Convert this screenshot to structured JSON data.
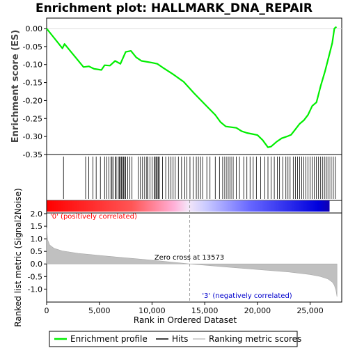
{
  "chart_data": {
    "type": "line",
    "title": "Enrichment plot: HALLMARK_DNA_REPAIR",
    "xlabel": "Rank in Ordered Dataset",
    "es_ylabel": "Enrichment score (ES)",
    "metric_ylabel": "Ranked list metric (Signal2Noise)",
    "xlim": [
      0,
      28000
    ],
    "x_ticks": [
      0,
      5000,
      10000,
      15000,
      20000,
      25000
    ],
    "x_tick_labels": [
      "0",
      "5,000",
      "10,000",
      "15,000",
      "20,000",
      "25,000"
    ],
    "es_ylim": [
      -0.35,
      0.0
    ],
    "es_ticks": [
      0.0,
      -0.05,
      -0.1,
      -0.15,
      -0.2,
      -0.25,
      -0.3,
      -0.35
    ],
    "es_tick_labels": [
      "0.00",
      "-0.05",
      "-0.10",
      "-0.15",
      "-0.20",
      "-0.25",
      "-0.30",
      "-0.35"
    ],
    "metric_ylim": [
      -1.35,
      2.0
    ],
    "metric_ticks": [
      2.0,
      1.5,
      1.0,
      0.5,
      0.0,
      -0.5,
      -1.0
    ],
    "metric_tick_labels": [
      "2.0",
      "1.5",
      "1.0",
      "0.5",
      "0.0",
      "-0.5",
      "-1.0"
    ],
    "series": [
      {
        "name": "Enrichment profile",
        "color": "#00ee00",
        "x": [
          0,
          1500,
          1700,
          3500,
          4000,
          4500,
          5200,
          5500,
          6000,
          6500,
          7000,
          7500,
          8000,
          8500,
          9000,
          10000,
          10500,
          11000,
          12000,
          13000,
          14000,
          15000,
          16000,
          16500,
          17000,
          17500,
          18000,
          18500,
          19000,
          19500,
          20000,
          20500,
          21000,
          21300,
          21800,
          22300,
          22800,
          23200,
          23600,
          24000,
          24400,
          24800,
          25200,
          25600,
          26000,
          26400,
          26800,
          27100,
          27300,
          27500
        ],
        "y": [
          0.0,
          -0.055,
          -0.043,
          -0.107,
          -0.105,
          -0.112,
          -0.115,
          -0.102,
          -0.103,
          -0.09,
          -0.098,
          -0.065,
          -0.062,
          -0.08,
          -0.09,
          -0.095,
          -0.098,
          -0.108,
          -0.127,
          -0.148,
          -0.18,
          -0.21,
          -0.24,
          -0.26,
          -0.272,
          -0.274,
          -0.276,
          -0.285,
          -0.29,
          -0.293,
          -0.296,
          -0.31,
          -0.33,
          -0.328,
          -0.315,
          -0.305,
          -0.3,
          -0.295,
          -0.28,
          -0.265,
          -0.255,
          -0.24,
          -0.215,
          -0.205,
          -0.16,
          -0.12,
          -0.075,
          -0.04,
          0.0,
          0.005
        ]
      }
    ],
    "hits_rank": [
      1600,
      3700,
      4000,
      4400,
      4700,
      5100,
      5500,
      5700,
      5900,
      6100,
      6200,
      6300,
      6500,
      6600,
      6800,
      6900,
      7000,
      7100,
      7200,
      7300,
      7400,
      7500,
      7700,
      7900,
      8100,
      8700,
      8900,
      9100,
      9300,
      9500,
      9600,
      9800,
      10000,
      10200,
      10300,
      10400,
      10500,
      10600,
      10700,
      11000,
      11300,
      11600,
      11800,
      12000,
      12200,
      12500,
      12800,
      13100,
      13300,
      13600,
      13900,
      14200,
      14400,
      14600,
      14800,
      15200,
      15500,
      16000,
      16400,
      16700,
      16900,
      17100,
      17300,
      17500,
      17700,
      18000,
      18300,
      18700,
      19000,
      19300,
      19600,
      19900,
      20300,
      20700,
      21000,
      21300,
      21600,
      21900,
      22100,
      22400,
      22700,
      22900,
      23100,
      23400,
      23600,
      23800,
      24000,
      24200,
      24400,
      24600,
      24800,
      25000,
      25200,
      25400,
      25600,
      25800,
      26000,
      26200,
      26400,
      26600,
      26800,
      27000,
      27200,
      27400
    ],
    "metric_curve": {
      "x": [
        0,
        100,
        300,
        700,
        1500,
        3000,
        6000,
        10000,
        13573,
        17000,
        20000,
        23000,
        25000,
        26000,
        26700,
        27100,
        27300,
        27450,
        27550
      ],
      "y": [
        1.45,
        0.95,
        0.75,
        0.62,
        0.52,
        0.42,
        0.3,
        0.15,
        0.0,
        -0.12,
        -0.22,
        -0.32,
        -0.42,
        -0.5,
        -0.6,
        -0.72,
        -0.85,
        -1.05,
        -1.3
      ]
    },
    "zero_cross_rank": 13573,
    "annotations": {
      "zero_cross": "Zero cross at 13573",
      "positive": "'0' (positively correlated)",
      "negative": "'3' (negatively correlated)"
    },
    "legend": {
      "position": "bottom",
      "entries": [
        {
          "label": "Enrichment profile",
          "color": "#00ee00"
        },
        {
          "label": "Hits",
          "color": "#000000"
        },
        {
          "label": "Ranking metric scores",
          "color": "#c0c0c0"
        }
      ]
    },
    "colors": {
      "positive": "#ff0000",
      "negative": "#0000ff",
      "metric_fill": "#c0c0c0",
      "zero_cross_line": "#a0a0a0",
      "positive_label": "#ff0000",
      "negative_label": "#0000cc"
    }
  }
}
